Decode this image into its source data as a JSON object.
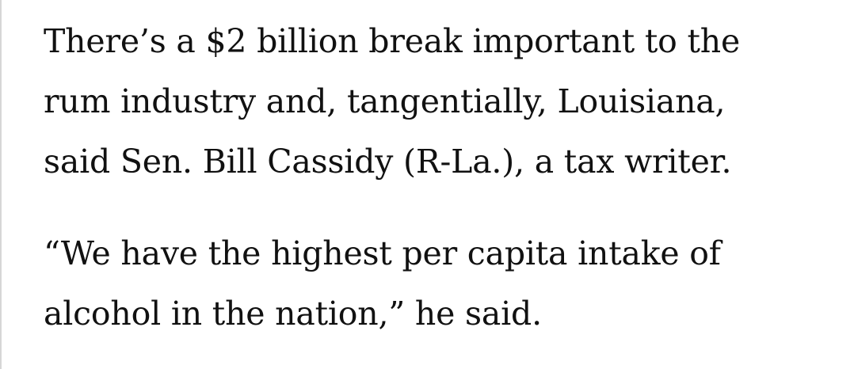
{
  "article": {
    "paragraphs": [
      {
        "lines": [
          "There’s a $2 billion break important to the",
          "rum industry and, tangentially, Louisiana,",
          "said Sen. Bill Cassidy (R-La.), a tax writer."
        ]
      },
      {
        "lines": [
          "“We have the highest per capita intake of",
          "alcohol in the nation,” he said."
        ]
      }
    ]
  },
  "colors": {
    "text": "#111111",
    "background": "#ffffff",
    "left_rule": "#d6d6d6"
  }
}
